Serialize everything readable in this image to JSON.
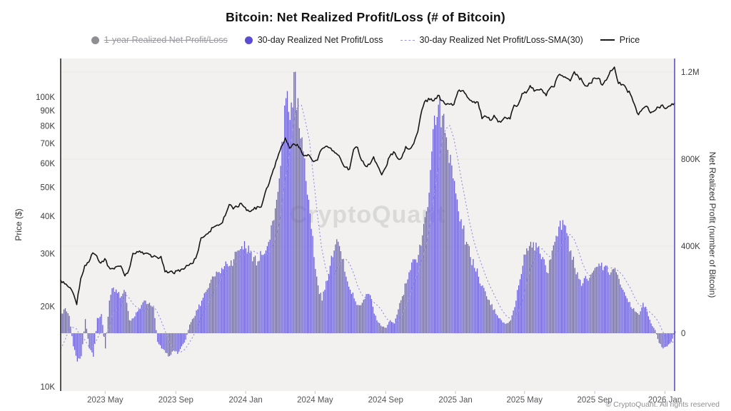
{
  "title": "Bitcoin: Net Realized Profit/Loss (# of Bitcoin)",
  "watermark": "CryptoQuant",
  "copyright": "© CryptoQuant. All rights reserved",
  "legend": [
    {
      "label": "1-year Realized Net Profit/Loss",
      "marker": "dot",
      "color": "#8e8e93",
      "disabled": true
    },
    {
      "label": "30-day Realized Net Profit/Loss",
      "marker": "dot",
      "color": "#5a4cd6",
      "disabled": false
    },
    {
      "label": "30-day Realized Net Profit/Loss-SMA(30)",
      "marker": "dashed-line",
      "color": "#9a93e2",
      "disabled": false
    },
    {
      "label": "Price",
      "marker": "line",
      "color": "#1a1a1a",
      "disabled": false
    }
  ],
  "colors": {
    "bars": "#655ad2",
    "sma": "#938ce0",
    "price": "#161616",
    "plot_bg": "#f2f1ef",
    "left_axis_line": "#2a2a2a",
    "right_axis_line": "#5a50c8",
    "tick_text": "#3c3c3c",
    "x_tick_text": "#55555a",
    "watermark": "#d9d9d7",
    "gridline": "#eae9e6"
  },
  "left_axis": {
    "label": "Price ($)",
    "scale": "log",
    "ticks": [
      {
        "v": 100000,
        "label": "100K"
      },
      {
        "v": 90000,
        "label": "90K"
      },
      {
        "v": 80000,
        "label": "80K"
      },
      {
        "v": 70000,
        "label": "70K"
      },
      {
        "v": 60000,
        "label": "60K"
      },
      {
        "v": 50000,
        "label": "50K"
      },
      {
        "v": 40000,
        "label": "40K"
      },
      {
        "v": 30000,
        "label": "30K"
      },
      {
        "v": 20000,
        "label": "20K"
      },
      {
        "v": 10000,
        "label": "10K"
      }
    ]
  },
  "right_axis": {
    "label": "Net Realized Profit (number of Bitcoin)",
    "ticks": [
      {
        "v": 1200000,
        "label": "1.2M"
      },
      {
        "v": 800000,
        "label": "800K"
      },
      {
        "v": 400000,
        "label": "400K"
      },
      {
        "v": 0,
        "label": "0"
      }
    ]
  },
  "x_axis": {
    "ticks": [
      {
        "week": 11.1,
        "label": "2023 May"
      },
      {
        "week": 28.7,
        "label": "2023 Sep"
      },
      {
        "week": 46.1,
        "label": "2024 Jan"
      },
      {
        "week": 63.4,
        "label": "2024 May"
      },
      {
        "week": 81.0,
        "label": "2024 Sep"
      },
      {
        "week": 98.4,
        "label": "2025 Jan"
      },
      {
        "week": 115.6,
        "label": "2025 May"
      },
      {
        "week": 133.1,
        "label": "2025 Sep"
      },
      {
        "week": 150.6,
        "label": "2026 Jan"
      }
    ]
  },
  "chart_data": {
    "type": "bar",
    "x_unit": "week",
    "x_start": "2023-02-12",
    "x_end": "2026-01-25",
    "ylim_left_log": [
      10000,
      130000
    ],
    "ylim_right": [
      -265000,
      1260000
    ],
    "series": [
      {
        "name": "30-day Realized Net Profit/Loss",
        "type": "bar",
        "axis": "right",
        "values": [
          90000,
          115000,
          80000,
          -60000,
          -130000,
          -105000,
          65000,
          -70000,
          -108000,
          70000,
          88000,
          -70000,
          150000,
          210000,
          185000,
          170000,
          190000,
          60000,
          70000,
          100000,
          130000,
          150000,
          140000,
          120000,
          -40000,
          -70000,
          -90000,
          -105000,
          -80000,
          -95000,
          -60000,
          -30000,
          40000,
          70000,
          110000,
          150000,
          190000,
          230000,
          260000,
          280000,
          300000,
          330000,
          310000,
          340000,
          380000,
          400000,
          390000,
          370000,
          350000,
          330000,
          360000,
          380000,
          430000,
          520000,
          650000,
          880000,
          1080000,
          980000,
          1200000,
          1080000,
          900000,
          700000,
          550000,
          350000,
          220000,
          150000,
          240000,
          310000,
          380000,
          420000,
          340000,
          260000,
          200000,
          160000,
          130000,
          140000,
          180000,
          175000,
          90000,
          50000,
          30000,
          25000,
          60000,
          45000,
          110000,
          170000,
          230000,
          290000,
          340000,
          360000,
          450000,
          560000,
          750000,
          1000000,
          1050000,
          1000000,
          900000,
          820000,
          700000,
          560000,
          480000,
          420000,
          350000,
          300000,
          260000,
          220000,
          170000,
          130000,
          110000,
          70000,
          50000,
          45000,
          60000,
          120000,
          220000,
          310000,
          390000,
          420000,
          380000,
          400000,
          350000,
          280000,
          340000,
          420000,
          490000,
          520000,
          460000,
          380000,
          300000,
          250000,
          230000,
          250000,
          270000,
          300000,
          320000,
          290000,
          310000,
          280000,
          300000,
          250000,
          200000,
          160000,
          120000,
          100000,
          85000,
          140000,
          100000,
          45000,
          15000,
          -45000,
          -70000,
          -60000,
          -40000,
          10000
        ]
      },
      {
        "name": "30-day Realized Net Profit/Loss-SMA(30)",
        "type": "dotted-line",
        "axis": "right",
        "derived_from": "trailing moving average (window 5 weeks) of bar series",
        "warmup": [
          -160000,
          -130000,
          -90000
        ]
      },
      {
        "name": "Price",
        "type": "line",
        "axis": "left",
        "values": [
          24500,
          23800,
          23200,
          22300,
          20300,
          24800,
          27400,
          28100,
          30200,
          29500,
          27900,
          28900,
          27100,
          26800,
          27200,
          27300,
          25300,
          26500,
          30100,
          30500,
          30300,
          30100,
          29900,
          29300,
          29200,
          29400,
          26100,
          26000,
          25900,
          26300,
          26600,
          26900,
          27500,
          27900,
          29900,
          33900,
          34500,
          35500,
          36700,
          37400,
          37800,
          40200,
          43800,
          42300,
          43000,
          44200,
          42800,
          41500,
          42100,
          43100,
          43000,
          48200,
          51800,
          57300,
          62400,
          68500,
          73000,
          67500,
          69800,
          69500,
          65600,
          63900,
          63800,
          60900,
          61600,
          66900,
          68400,
          67700,
          66100,
          64200,
          61000,
          58300,
          57500,
          66800,
          67900,
          61400,
          58800,
          59600,
          63200,
          58900,
          55000,
          58200,
          63300,
          65700,
          62400,
          62900,
          68400,
          67100,
          69900,
          76600,
          90400,
          97600,
          97900,
          97200,
          101300,
          97400,
          94300,
          94600,
          94400,
          104400,
          105000,
          102100,
          97600,
          96600,
          96200,
          84700,
          86100,
          83700,
          86900,
          82600,
          83500,
          85200,
          84500,
          94000,
          94200,
          102800,
          103200,
          109200,
          104600,
          105700,
          105500,
          101000,
          107300,
          108200,
          118000,
          117900,
          115800,
          113200,
          121500,
          117100,
          112900,
          108800,
          111200,
          115800,
          115700,
          109600,
          113900,
          122500,
          125900,
          111000,
          110100,
          106500,
          102000,
          94500,
          87300,
          91300,
          93200,
          88500,
          90000,
          92400,
          94100,
          91800,
          93500,
          95500
        ]
      }
    ]
  }
}
